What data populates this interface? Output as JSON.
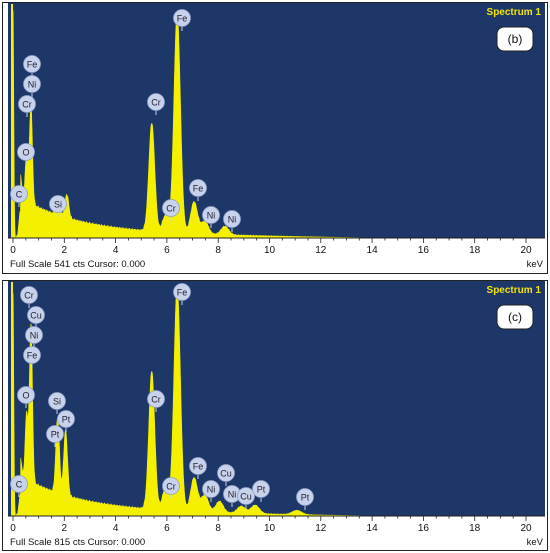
{
  "panels": [
    {
      "id": "b",
      "label": "(b)",
      "spectrum_label": "Spectrum 1",
      "footer": "Full Scale 541 cts Cursor: 0.000",
      "unit": "keV",
      "x_ticks": [
        "0",
        "2",
        "4",
        "6",
        "8",
        "10",
        "12",
        "14",
        "16",
        "18",
        "20"
      ]
    },
    {
      "id": "c",
      "label": "(c)",
      "spectrum_label": "Spectrum 1",
      "footer": "Full Scale 815 cts Cursor: 0.000",
      "unit": "keV",
      "x_ticks": [
        "0",
        "2",
        "4",
        "6",
        "8",
        "10",
        "12",
        "14",
        "16",
        "18",
        "20"
      ]
    }
  ],
  "colors": {
    "background": "#1d3768",
    "spectrum": "#f5f000",
    "marker": "#c8d2ea"
  },
  "chart_data": [
    {
      "type": "area",
      "title": "Spectrum 1",
      "xlabel": "keV",
      "ylabel": "",
      "xlim": [
        0,
        20
      ],
      "ylim": [
        0,
        541
      ],
      "grid": false,
      "full_scale_cts": 541,
      "peaks": [
        {
          "x": 0.0,
          "y": 540
        },
        {
          "x": 0.28,
          "y": 60
        },
        {
          "x": 0.53,
          "y": 110
        },
        {
          "x": 0.7,
          "y": 230
        },
        {
          "x": 1.75,
          "y": 45
        },
        {
          "x": 2.1,
          "y": 55
        },
        {
          "x": 5.41,
          "y": 255
        },
        {
          "x": 5.95,
          "y": 40
        },
        {
          "x": 6.4,
          "y": 520
        },
        {
          "x": 7.06,
          "y": 75
        },
        {
          "x": 7.48,
          "y": 30
        },
        {
          "x": 8.26,
          "y": 20
        }
      ],
      "annotations": [
        {
          "text": "Fe",
          "x": 6.4
        },
        {
          "text": "Cr",
          "x": 5.41
        },
        {
          "text": "Fe",
          "x": 0.7
        },
        {
          "text": "Ni",
          "x": 0.7
        },
        {
          "text": "Cr",
          "x": 0.7
        },
        {
          "text": "O",
          "x": 0.53
        },
        {
          "text": "C",
          "x": 0.28
        },
        {
          "text": "Si",
          "x": 1.74
        },
        {
          "text": "Cr",
          "x": 5.95
        },
        {
          "text": "Fe",
          "x": 7.06
        },
        {
          "text": "Ni",
          "x": 7.48
        },
        {
          "text": "Ni",
          "x": 8.26
        }
      ]
    },
    {
      "type": "area",
      "title": "Spectrum 1",
      "xlabel": "keV",
      "ylabel": "",
      "xlim": [
        0,
        20
      ],
      "ylim": [
        0,
        815
      ],
      "grid": false,
      "full_scale_cts": 815,
      "peaks": [
        {
          "x": 0.0,
          "y": 790
        },
        {
          "x": 0.28,
          "y": 70
        },
        {
          "x": 0.53,
          "y": 230
        },
        {
          "x": 0.7,
          "y": 560
        },
        {
          "x": 1.74,
          "y": 270
        },
        {
          "x": 2.05,
          "y": 230
        },
        {
          "x": 5.41,
          "y": 490
        },
        {
          "x": 5.95,
          "y": 80
        },
        {
          "x": 6.4,
          "y": 800
        },
        {
          "x": 7.06,
          "y": 120
        },
        {
          "x": 7.48,
          "y": 60
        },
        {
          "x": 8.05,
          "y": 40
        },
        {
          "x": 8.9,
          "y": 25
        },
        {
          "x": 9.44,
          "y": 30
        },
        {
          "x": 11.07,
          "y": 15
        }
      ],
      "annotations": [
        {
          "text": "Fe",
          "x": 6.4
        },
        {
          "text": "Cr",
          "x": 0.7
        },
        {
          "text": "Cu",
          "x": 0.93
        },
        {
          "text": "Ni",
          "x": 0.85
        },
        {
          "text": "Fe",
          "x": 0.7
        },
        {
          "text": "O",
          "x": 0.53
        },
        {
          "text": "Si",
          "x": 1.74
        },
        {
          "text": "Pt",
          "x": 2.05
        },
        {
          "text": "Pt",
          "x": 1.65
        },
        {
          "text": "Cr",
          "x": 5.41
        },
        {
          "text": "C",
          "x": 0.28
        },
        {
          "text": "Cr",
          "x": 5.95
        },
        {
          "text": "Fe",
          "x": 7.06
        },
        {
          "text": "Ni",
          "x": 7.48
        },
        {
          "text": "Cu",
          "x": 8.05
        },
        {
          "text": "Ni",
          "x": 8.26
        },
        {
          "text": "Cu",
          "x": 8.9
        },
        {
          "text": "Pt",
          "x": 9.44
        },
        {
          "text": "Pt",
          "x": 11.07
        }
      ]
    }
  ]
}
